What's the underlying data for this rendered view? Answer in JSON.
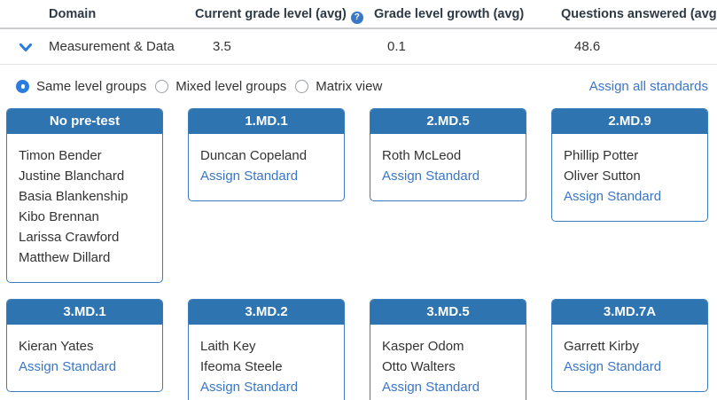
{
  "colors": {
    "card_header_blue": "#2d74b0",
    "card_border_blue": "#3a7cbe",
    "link_blue": "#3a76c8",
    "radio_selected_blue": "#2a7cdf",
    "help_icon_blue": "#3878c5"
  },
  "icons": {
    "help_glyph": "?",
    "row_expander": "chevron-down"
  },
  "table": {
    "columns": {
      "domain": "Domain",
      "current_grade": "Current grade level (avg)",
      "growth": "Grade level growth (avg)",
      "questions": "Questions answered (avg)"
    },
    "row": {
      "domain": "Measurement & Data",
      "current_grade": "3.5",
      "growth": "0.1",
      "questions": "48.6"
    }
  },
  "controls": {
    "radios": [
      {
        "label": "Same level groups",
        "selected": true
      },
      {
        "label": "Mixed level groups",
        "selected": false
      },
      {
        "label": "Matrix view",
        "selected": false
      }
    ],
    "assign_all_label": "Assign all standards"
  },
  "cards": [
    {
      "title": "No pre-test",
      "students": [
        "Timon Bender",
        "Justine Blanchard",
        "Basia Blankenship",
        "Kibo Brennan",
        "Larissa Crawford",
        "Matthew Dillard"
      ],
      "assign_label": null
    },
    {
      "title": "1.MD.1",
      "students": [
        "Duncan Copeland"
      ],
      "assign_label": "Assign Standard"
    },
    {
      "title": "2.MD.5",
      "students": [
        "Roth McLeod"
      ],
      "assign_label": "Assign Standard"
    },
    {
      "title": "2.MD.9",
      "students": [
        "Phillip Potter",
        "Oliver Sutton"
      ],
      "assign_label": "Assign Standard"
    },
    {
      "title": "3.MD.1",
      "students": [
        "Kieran Yates"
      ],
      "assign_label": "Assign Standard"
    },
    {
      "title": "3.MD.2",
      "students": [
        "Laith Key",
        "Ifeoma Steele"
      ],
      "assign_label": "Assign Standard"
    },
    {
      "title": "3.MD.5",
      "students": [
        "Kasper Odom",
        "Otto Walters"
      ],
      "assign_label": "Assign Standard"
    },
    {
      "title": "3.MD.7A",
      "students": [
        "Garrett Kirby"
      ],
      "assign_label": "Assign Standard"
    }
  ]
}
